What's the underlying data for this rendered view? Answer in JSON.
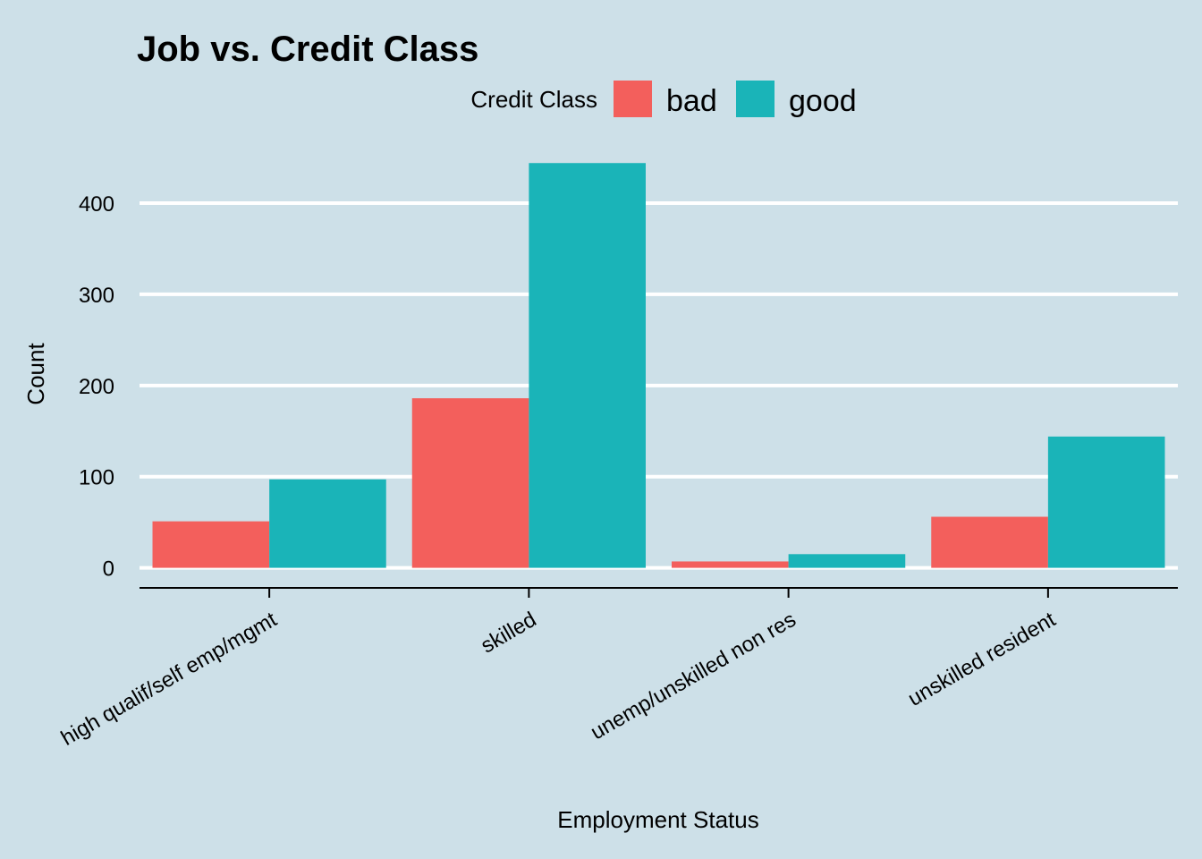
{
  "chart_data": {
    "type": "bar",
    "title": "Job vs. Credit Class",
    "xlabel": "Employment Status",
    "ylabel": "Count",
    "categories": [
      "high qualif/self emp/mgmt",
      "skilled",
      "unemp/unskilled non res",
      "unskilled resident"
    ],
    "series": [
      {
        "name": "bad",
        "values": [
          51,
          186,
          7,
          56
        ],
        "color": "#f35f5c"
      },
      {
        "name": "good",
        "values": [
          97,
          444,
          15,
          144
        ],
        "color": "#1ab4b8"
      }
    ],
    "legend": {
      "title": "Credit Class",
      "placement": "top"
    },
    "ylim": [
      -22,
      456
    ],
    "yticks": [
      0,
      100,
      200,
      300,
      400
    ],
    "grid": true
  }
}
